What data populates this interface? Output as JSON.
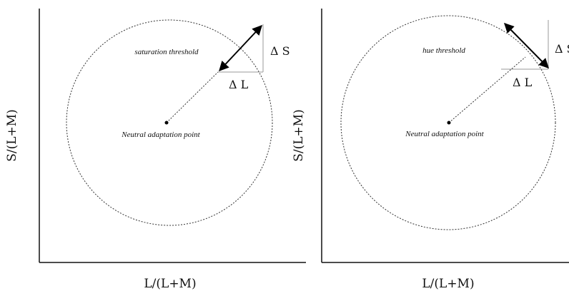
{
  "panels": [
    {
      "id": "left",
      "threshold_label": "saturation threshold",
      "point_label": "Neutral adaptation point",
      "delta_s_label": "Δ S",
      "delta_l_label": "Δ L",
      "x_axis_label": "L/(L+M)",
      "y_axis_label": "S/(L+M)"
    },
    {
      "id": "right",
      "threshold_label": "hue threshold",
      "point_label": "Neutral adaptation point",
      "delta_s_label": "Δ S",
      "delta_l_label": "Δ L",
      "x_axis_label": "L/(L+M)",
      "y_axis_label": "S/(L+M)"
    }
  ],
  "colors": {
    "axis": "#111111",
    "circle": "#333333",
    "guide": "#999999",
    "arrow": "#000000"
  }
}
